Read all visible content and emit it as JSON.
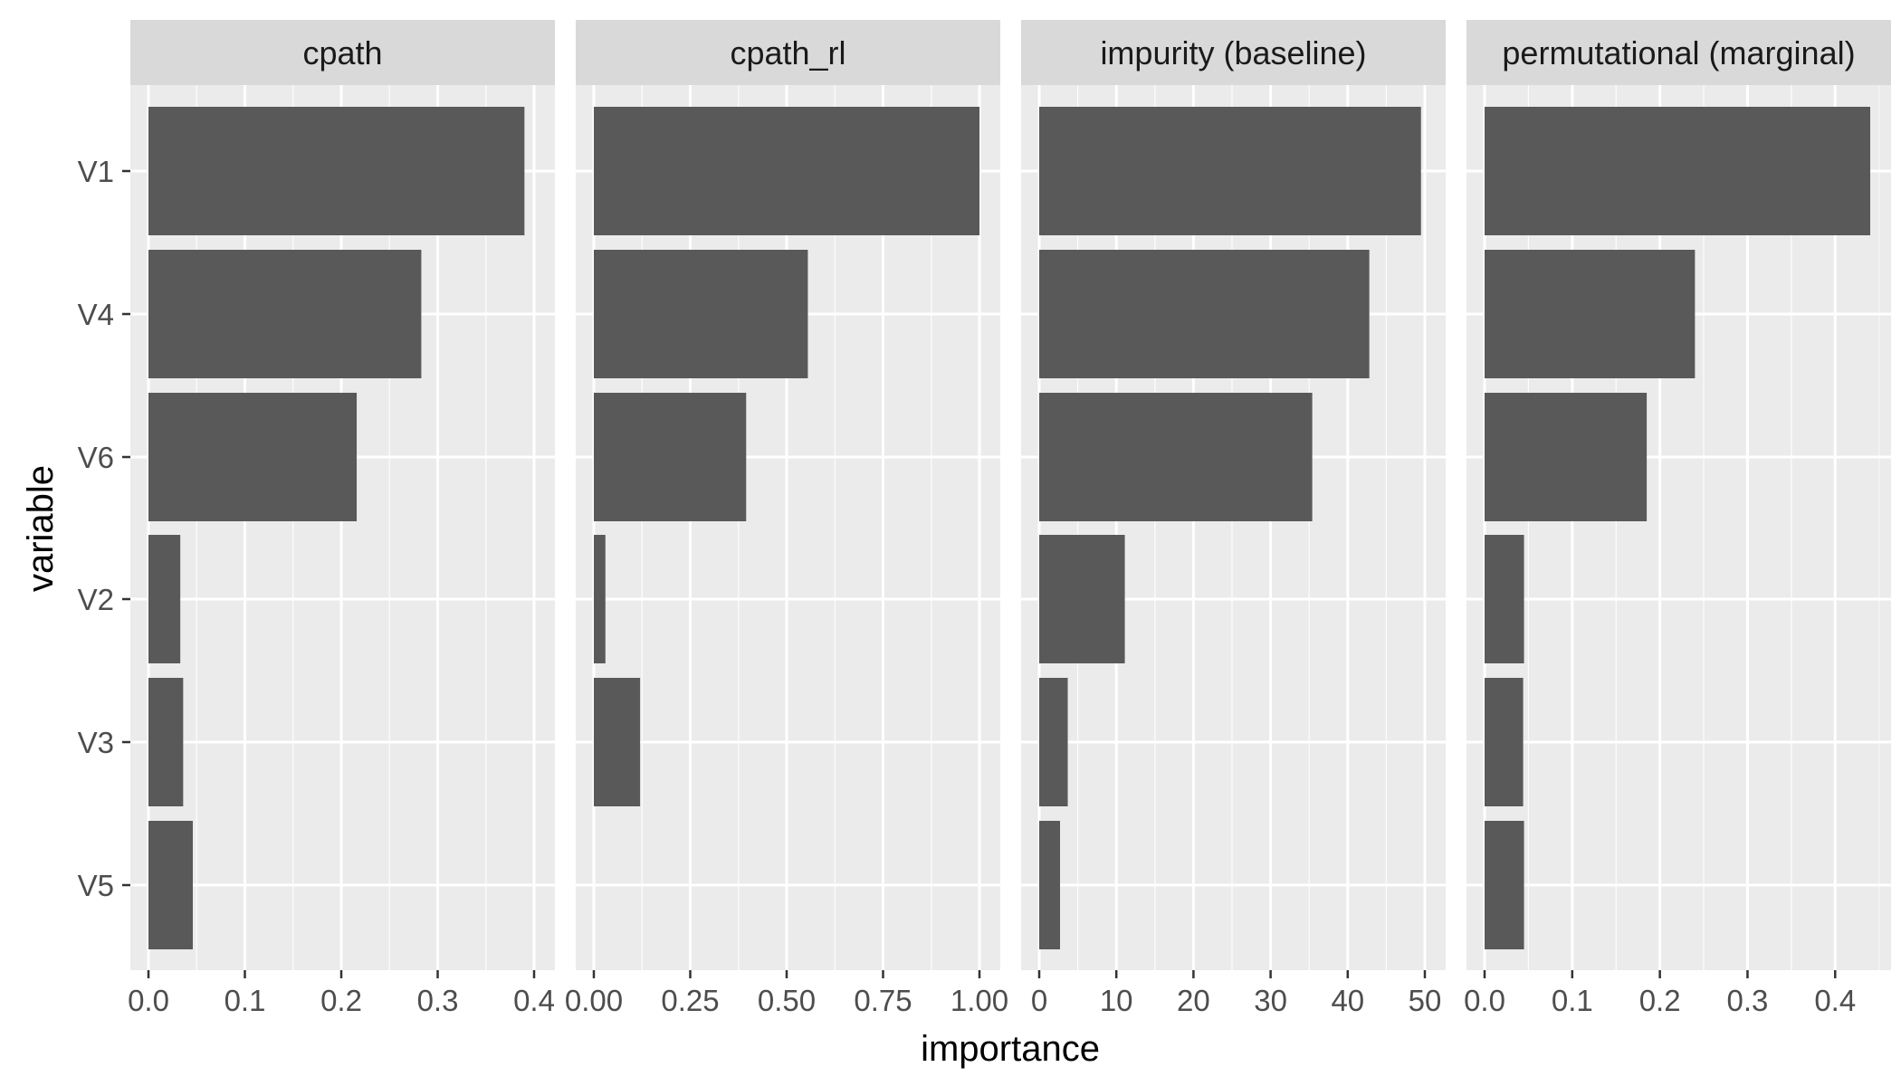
{
  "chart_data": {
    "type": "bar",
    "orientation": "horizontal",
    "xlabel": "importance",
    "ylabel": "variable",
    "categories": [
      "V1",
      "V4",
      "V6",
      "V2",
      "V3",
      "V5"
    ],
    "grid": true,
    "colors": {
      "bar": "#595959",
      "panel_bg": "#ebebeb",
      "grid_major": "#ffffff",
      "strip_bg": "#d9d9d9",
      "tick": "#333333"
    },
    "facets": [
      {
        "name": "cpath",
        "xlim": [
          0,
          0.4
        ],
        "ticks": [
          0.0,
          0.1,
          0.2,
          0.3,
          0.4
        ],
        "tick_labels": [
          "0.0",
          "0.1",
          "0.2",
          "0.3",
          "0.4"
        ],
        "values": [
          0.39,
          0.283,
          0.216,
          0.033,
          0.036,
          0.046
        ]
      },
      {
        "name": "cpath_rl",
        "xlim": [
          0,
          1.0
        ],
        "ticks": [
          0.0,
          0.25,
          0.5,
          0.75,
          1.0
        ],
        "tick_labels": [
          "0.00",
          "0.25",
          "0.50",
          "0.75",
          "1.00"
        ],
        "values": [
          1.0,
          0.555,
          0.395,
          0.03,
          0.12,
          0.0
        ]
      },
      {
        "name": "impurity (baseline)",
        "xlim": [
          0,
          50
        ],
        "ticks": [
          0,
          10,
          20,
          30,
          40,
          50
        ],
        "tick_labels": [
          "0",
          "10",
          "20",
          "30",
          "40",
          "50"
        ],
        "values": [
          49.5,
          42.8,
          35.4,
          11.1,
          3.7,
          2.7
        ]
      },
      {
        "name": "permutational (marginal)",
        "xlim": [
          0,
          0.44
        ],
        "ticks": [
          0.0,
          0.1,
          0.2,
          0.3,
          0.4
        ],
        "tick_labels": [
          "0.0",
          "0.1",
          "0.2",
          "0.3",
          "0.4"
        ],
        "values": [
          0.44,
          0.24,
          0.185,
          0.045,
          0.044,
          0.045
        ]
      }
    ]
  }
}
